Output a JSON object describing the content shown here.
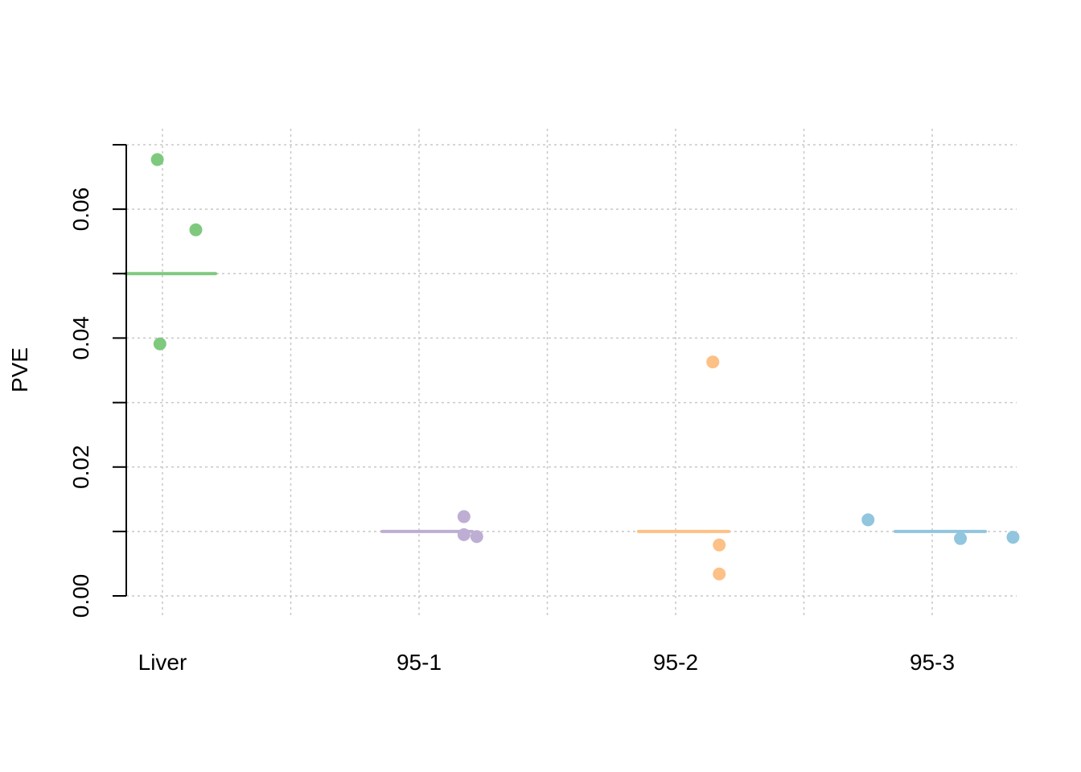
{
  "chart_data": {
    "type": "scatter",
    "ylabel": "PVE",
    "xlabel": "",
    "ylim": [
      0,
      0.07
    ],
    "yticks": [
      0.0,
      0.02,
      0.04,
      0.06
    ],
    "ytick_labels": [
      "0.00",
      "0.02",
      "0.04",
      "0.06"
    ],
    "grid": true,
    "categories": [
      "Liver",
      "95-1",
      "95-2",
      "95-3"
    ],
    "series": [
      {
        "category": "Liver",
        "color": "#7fc97f",
        "mean": 0.05,
        "points": [
          {
            "jitter": -0.04,
            "y": 0.0677
          },
          {
            "jitter": 0.26,
            "y": 0.0568
          },
          {
            "jitter": -0.02,
            "y": 0.0391
          }
        ]
      },
      {
        "category": "95-1",
        "color": "#beaed4",
        "mean": 0.01,
        "points": [
          {
            "jitter": 0.35,
            "y": 0.0123
          },
          {
            "jitter": 0.35,
            "y": 0.0095
          },
          {
            "jitter": 0.45,
            "y": 0.0092
          }
        ]
      },
      {
        "category": "95-2",
        "color": "#fdc086",
        "mean": 0.01,
        "points": [
          {
            "jitter": 0.29,
            "y": 0.0363
          },
          {
            "jitter": 0.34,
            "y": 0.0079
          },
          {
            "jitter": 0.34,
            "y": 0.0034
          }
        ]
      },
      {
        "category": "95-3",
        "color": "#92c5de",
        "mean": 0.01,
        "points": [
          {
            "jitter": -0.5,
            "y": 0.0118
          },
          {
            "jitter": 0.22,
            "y": 0.0089
          },
          {
            "jitter": 0.63,
            "y": 0.0091
          }
        ]
      }
    ]
  }
}
